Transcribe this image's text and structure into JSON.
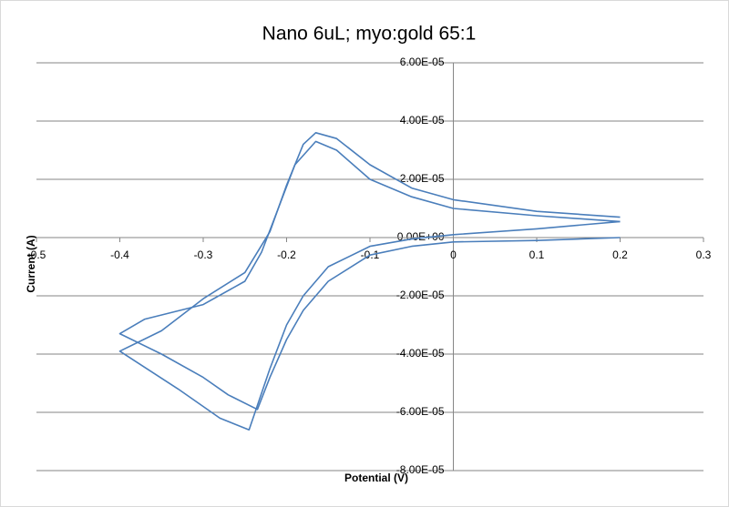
{
  "chart_data": {
    "type": "line",
    "title": "Nano 6uL; myo:gold 65:1",
    "x_label": "Potential (V)",
    "y_label": "Current (A)",
    "xlim": [
      -0.5,
      0.3
    ],
    "xticks": [
      -0.5,
      -0.4,
      -0.3,
      -0.2,
      -0.1,
      0,
      0.1,
      0.2,
      0.3
    ],
    "ylim": [
      -8e-05,
      6e-05
    ],
    "yticks": [
      {
        "value": -8e-05,
        "label": "-8.00E-05"
      },
      {
        "value": -6e-05,
        "label": "-6.00E-05"
      },
      {
        "value": -4e-05,
        "label": "-4.00E-05"
      },
      {
        "value": -2e-05,
        "label": "-2.00E-05"
      },
      {
        "value": 0,
        "label": "0.00E+00"
      },
      {
        "value": 2e-05,
        "label": "2.00E-05"
      },
      {
        "value": 4e-05,
        "label": "4.00E-05"
      },
      {
        "value": 6e-05,
        "label": "6.00E-05"
      }
    ],
    "grid": true,
    "series": [
      {
        "color": "#4a7ebb",
        "x": [
          0.2,
          0.1,
          0,
          -0.05,
          -0.1,
          -0.15,
          -0.18,
          -0.2,
          -0.22,
          -0.235,
          -0.27,
          -0.3,
          -0.35,
          -0.4,
          -0.37,
          -0.3,
          -0.25,
          -0.23,
          -0.21,
          -0.19,
          -0.165,
          -0.14,
          -0.1,
          -0.05,
          0,
          0.1,
          0.2
        ],
        "values": [
          0,
          -1e-06,
          -1.5e-06,
          -3e-06,
          -6e-06,
          -1.5e-05,
          -2.5e-05,
          -3.5e-05,
          -4.8e-05,
          -5.9e-05,
          -5.4e-05,
          -4.8e-05,
          -4e-05,
          -3.3e-05,
          -2.8e-05,
          -2.3e-05,
          -1.5e-05,
          -5e-06,
          1e-05,
          2.5e-05,
          3.3e-05,
          3e-05,
          2e-05,
          1.4e-05,
          1e-05,
          7.5e-06,
          5.5e-06
        ]
      },
      {
        "color": "#4a7ebb",
        "x": [
          0.2,
          0.1,
          0,
          -0.05,
          -0.1,
          -0.15,
          -0.18,
          -0.2,
          -0.22,
          -0.245,
          -0.28,
          -0.33,
          -0.4,
          -0.35,
          -0.3,
          -0.25,
          -0.22,
          -0.2,
          -0.18,
          -0.165,
          -0.14,
          -0.1,
          -0.05,
          0,
          0.1,
          0.2
        ],
        "values": [
          5.5e-06,
          3e-06,
          1e-06,
          -5e-07,
          -3e-06,
          -1e-05,
          -2e-05,
          -3e-05,
          -4.5e-05,
          -6.6e-05,
          -6.2e-05,
          -5.2e-05,
          -3.9e-05,
          -3.2e-05,
          -2.1e-05,
          -1.2e-05,
          2e-06,
          1.8e-05,
          3.2e-05,
          3.6e-05,
          3.4e-05,
          2.5e-05,
          1.7e-05,
          1.3e-05,
          9e-06,
          7e-06
        ]
      }
    ]
  }
}
